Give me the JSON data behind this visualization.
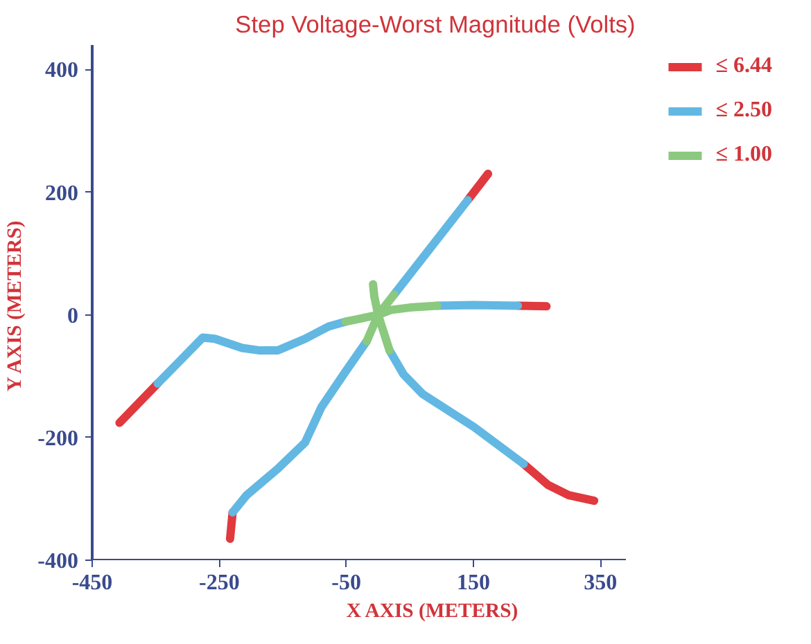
{
  "chart_data": {
    "type": "line",
    "title": "Step Voltage-Worst Magnitude (Volts)",
    "xlabel": "X AXIS  (METERS)",
    "ylabel": "Y AXIS  (METERS)",
    "xlim": [
      -450,
      390
    ],
    "ylim": [
      -400,
      440
    ],
    "xticks": [
      -450,
      -250,
      -50,
      150,
      350
    ],
    "yticks": [
      -400,
      -200,
      0,
      200,
      400
    ],
    "grid": false,
    "legend": "right",
    "marker": "none",
    "line_style": "solid",
    "series": [
      {
        "name": "≤ 6.44",
        "color": "#e0393e",
        "x": [
          141,
          173,
          null,
          220,
          265,
          null,
          229,
          267,
          300,
          340,
          null,
          -229,
          -233,
          null,
          -347,
          -407
        ],
        "values": [
          187,
          230,
          null,
          15,
          14,
          null,
          -243,
          -277,
          -294,
          -303,
          null,
          -322,
          -365,
          null,
          -112,
          -176
        ]
      },
      {
        "name": "≤ 2.50",
        "color": "#62b8e2",
        "x": [
          25,
          141,
          null,
          93,
          150,
          220,
          null,
          18,
          40,
          70,
          151,
          229,
          null,
          -18,
          -51,
          -89,
          -115,
          -158,
          -207,
          -229,
          null,
          -51,
          -78,
          -115,
          -158,
          -186,
          -214,
          -257,
          -276,
          -347
        ],
        "values": [
          33,
          187,
          null,
          15,
          16,
          15,
          null,
          -58,
          -97,
          -129,
          -183,
          -243,
          null,
          -43,
          -92,
          -150,
          -208,
          -251,
          -294,
          -322,
          null,
          -11,
          -19,
          -39,
          -58,
          -58,
          -54,
          -39,
          -37,
          -112
        ]
      },
      {
        "name": "≤ 1.00",
        "color": "#8bc97f",
        "x": [
          0,
          25,
          null,
          0,
          20,
          50,
          93,
          null,
          0,
          -6,
          -8,
          null,
          0,
          18,
          null,
          0,
          -18,
          null,
          0,
          -51
        ],
        "values": [
          0,
          33,
          null,
          0,
          8,
          12,
          15,
          null,
          0,
          30,
          50,
          null,
          0,
          -58,
          null,
          0,
          -43,
          null,
          0,
          -11
        ]
      }
    ]
  }
}
